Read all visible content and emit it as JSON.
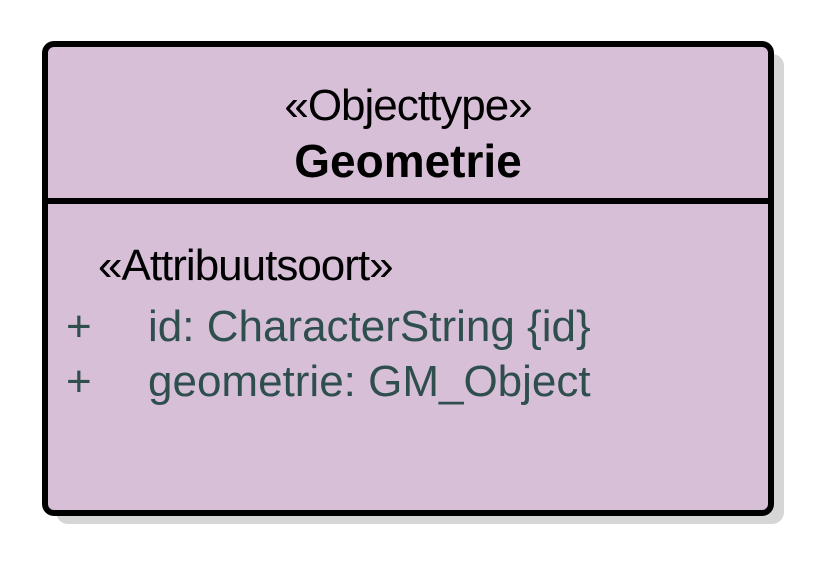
{
  "class": {
    "stereotype": "«Objecttype»",
    "name": "Geometrie",
    "attribute_stereotype": "«Attribuutsoort»",
    "attributes": [
      {
        "visibility": "+",
        "text": "id: CharacterString {id}"
      },
      {
        "visibility": "+",
        "text": "geometrie: GM_Object"
      }
    ]
  },
  "colors": {
    "fill": "#d8bfd8",
    "border": "#000000",
    "attribute_text": "#2f4f4f",
    "shadow": "#d6d6d6"
  }
}
